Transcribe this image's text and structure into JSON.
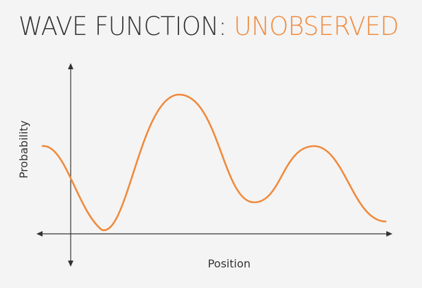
{
  "title": {
    "main": "WAVE FUNCTION: ",
    "accent": "UNOBSERVED"
  },
  "axes": {
    "x_label": "Position",
    "y_label": "Probability"
  },
  "colors": {
    "wave": "#f08a3c",
    "axis": "#333333",
    "background": "#f4f4f4"
  }
}
